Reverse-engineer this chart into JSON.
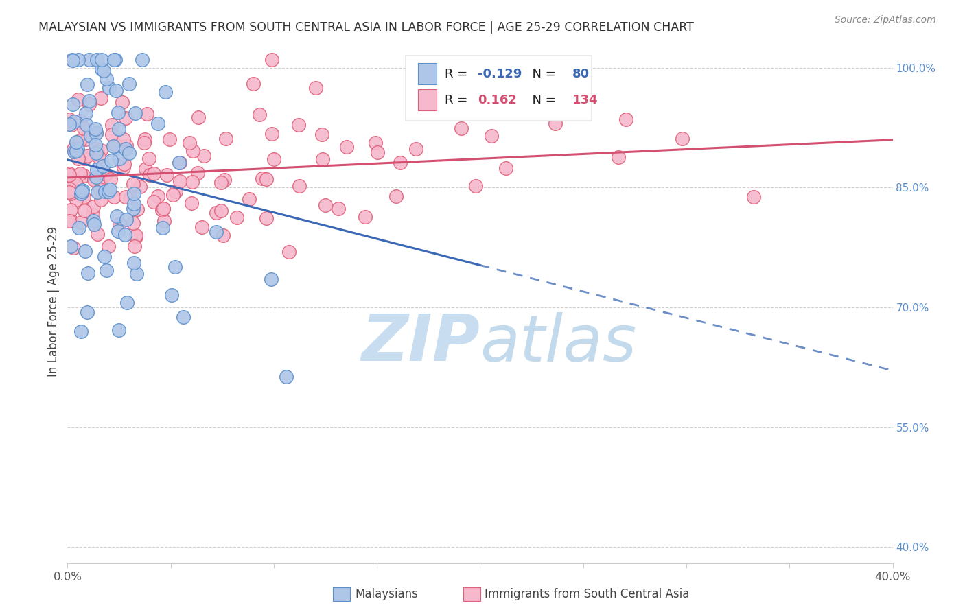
{
  "title": "MALAYSIAN VS IMMIGRANTS FROM SOUTH CENTRAL ASIA IN LABOR FORCE | AGE 25-29 CORRELATION CHART",
  "source": "Source: ZipAtlas.com",
  "ylabel": "In Labor Force | Age 25-29",
  "xlim": [
    0.0,
    0.4
  ],
  "ylim": [
    0.38,
    1.035
  ],
  "xticks": [
    0.0,
    0.05,
    0.1,
    0.15,
    0.2,
    0.25,
    0.3,
    0.35,
    0.4
  ],
  "xticklabels": [
    "0.0%",
    "",
    "",
    "",
    "",
    "",
    "",
    "",
    "40.0%"
  ],
  "yticks_right": [
    0.4,
    0.55,
    0.7,
    0.85,
    1.0
  ],
  "ytick_right_labels": [
    "40.0%",
    "55.0%",
    "70.0%",
    "85.0%",
    "100.0%"
  ],
  "blue_R": -0.129,
  "blue_N": 80,
  "pink_R": 0.162,
  "pink_N": 134,
  "blue_color": "#aec6e8",
  "blue_edge_color": "#5b8fcc",
  "pink_color": "#f5b8cc",
  "pink_edge_color": "#e0607a",
  "blue_line_color": "#3b68b5",
  "pink_line_color": "#d45070",
  "watermark_color": "#c8ddf0",
  "grid_color": "#d0d0d0",
  "axis_color": "#cccccc",
  "title_color": "#333333",
  "right_tick_color": "#5b8fcc",
  "legend_box_color": "#e8e8e8"
}
